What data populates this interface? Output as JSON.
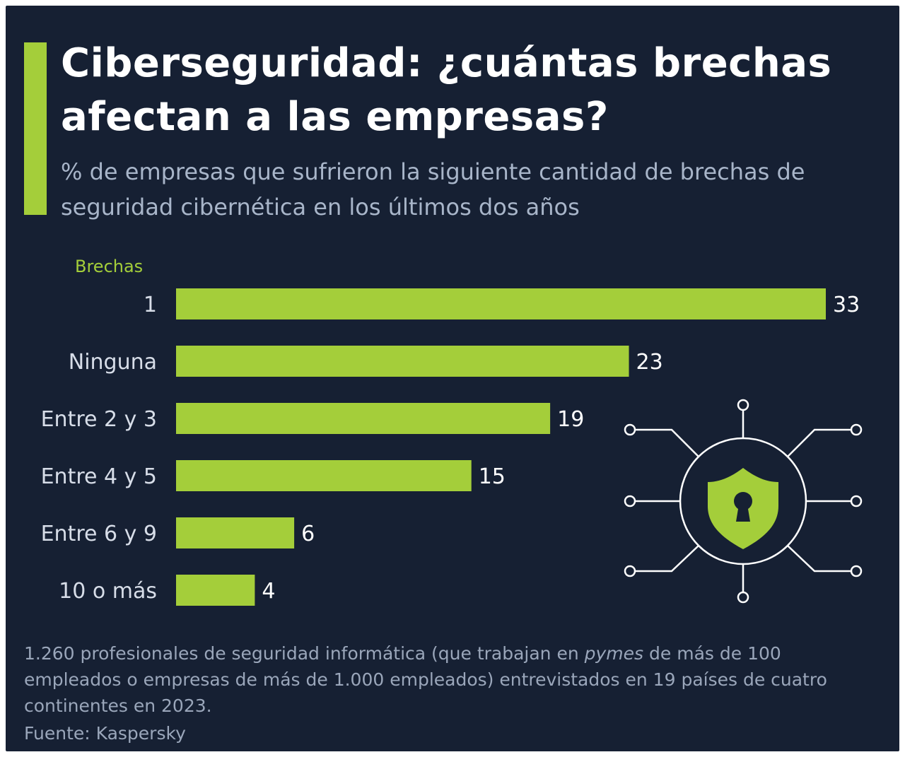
{
  "header": {
    "title": "Ciberseguridad: ¿cuántas brechas afectan a las empresas?",
    "subtitle": "% de empresas que sufrieron la siguiente cantidad de brechas de seguridad cibernética en los últimos dos años"
  },
  "chart_data": {
    "type": "bar",
    "orientation": "horizontal",
    "title": "Ciberseguridad: ¿cuántas brechas afectan a las empresas?",
    "subtitle": "% de empresas que sufrieron la siguiente cantidad de brechas de seguridad cibernética en los últimos dos años",
    "ylabel": "Brechas",
    "xlabel": "",
    "categories": [
      "1",
      "Ninguna",
      "Entre 2 y 3",
      "Entre 4 y 5",
      "Entre 6 y 9",
      "10 o más"
    ],
    "values": [
      33,
      23,
      19,
      15,
      6,
      4
    ],
    "xlim": [
      0,
      33
    ],
    "grid": false,
    "legend": "none",
    "bar_color": "#a4ce3a"
  },
  "footer": {
    "note_before_em": "1.260 profesionales de seguridad informática (que trabajan en ",
    "note_em": "pymes",
    "note_after_em": " de más de 100 empleados o empresas de más de 1.000 empleados) entrevistados en 19 países de cuatro continentes en 2023.",
    "source": "Fuente: Kaspersky"
  },
  "colors": {
    "background": "#162033",
    "accent": "#a4ce3a",
    "title": "#ffffff",
    "subtitle": "#a8b5c9",
    "footer_text": "#9aa6ba"
  },
  "illustration": {
    "icon": "shield-lock-circuit-icon"
  }
}
